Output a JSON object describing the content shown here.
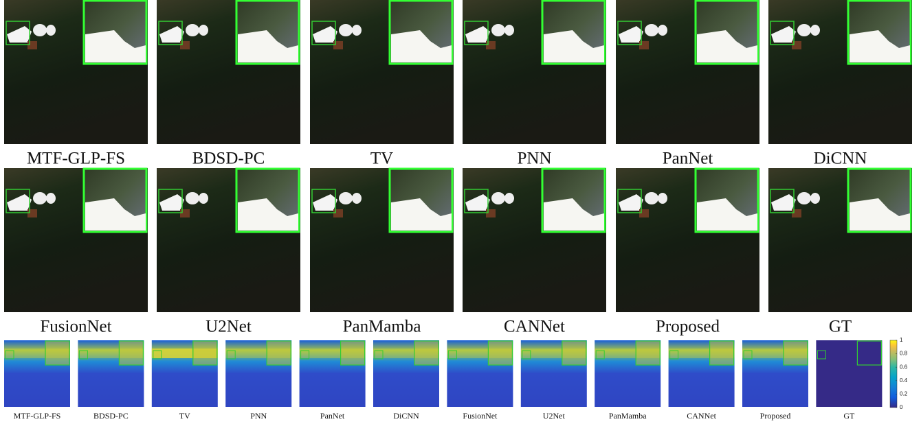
{
  "figure": {
    "row1_labels": [
      "MTF-GLP-FS",
      "BDSD-PC",
      "TV",
      "PNN",
      "PanNet",
      "DiCNN"
    ],
    "row2_labels": [
      "FusionNet",
      "U2Net",
      "PanMamba",
      "CANNet",
      "Proposed",
      "GT"
    ],
    "error_map_labels": [
      "MTF-GLP-FS",
      "BDSD-PC",
      "TV",
      "PNN",
      "PanNet",
      "DiCNN",
      "FusionNet",
      "U2Net",
      "PanMamba",
      "CANNet",
      "Proposed",
      "GT"
    ],
    "colorbar": {
      "lim": [
        0,
        1
      ],
      "ticks": [
        0,
        0.2,
        0.4,
        0.6,
        0.8,
        1
      ]
    }
  }
}
